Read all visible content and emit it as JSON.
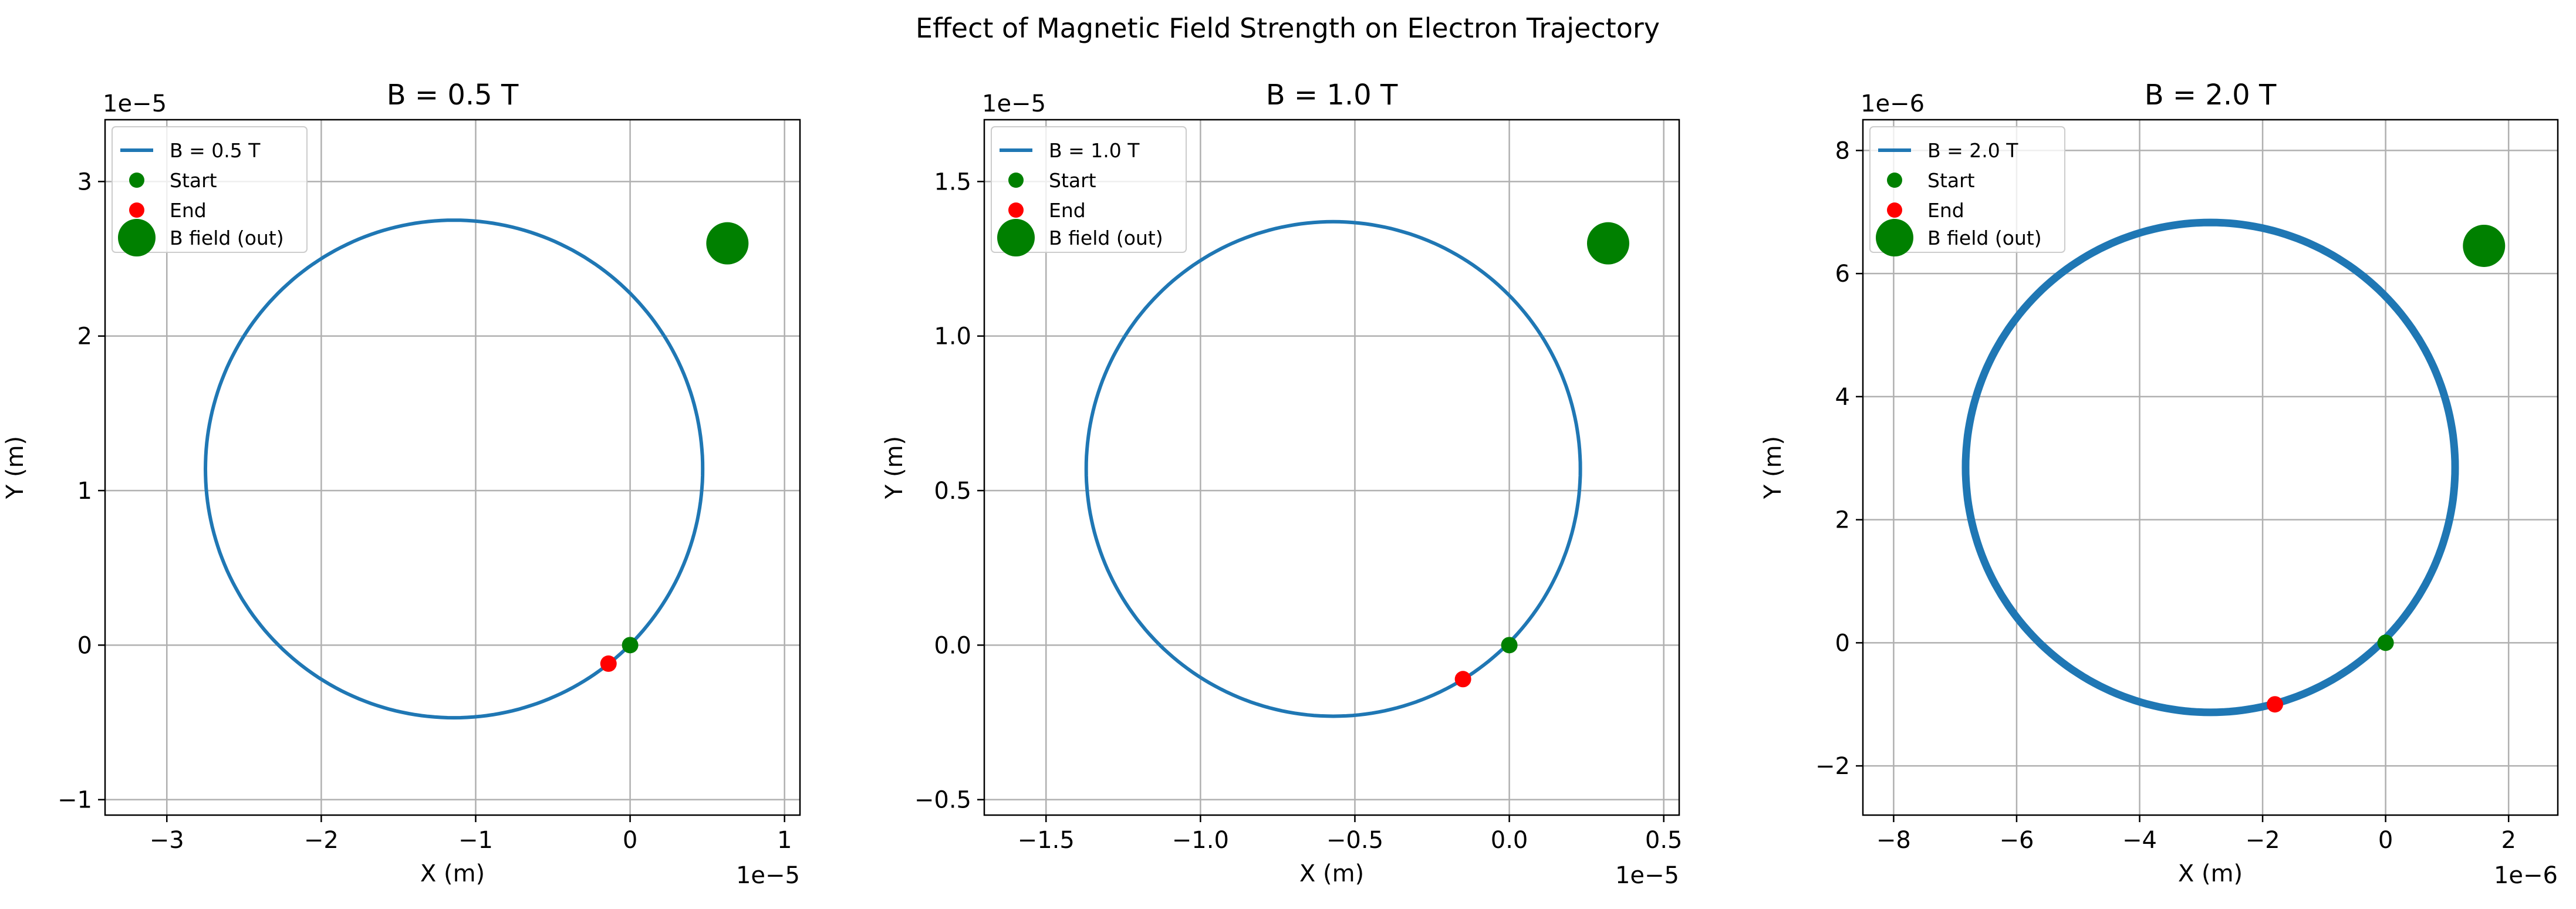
{
  "figure": {
    "suptitle": "Effect of Magnetic Field Strength on Electron Trajectory"
  },
  "colors": {
    "trajectory": "#1f77b4",
    "start_marker": "#008000",
    "end_marker": "#ff0000",
    "b_field_marker": "#008000",
    "grid": "#b0b0b0"
  },
  "chart_data": [
    {
      "type": "line",
      "title": "B = 0.5 T",
      "xlabel": "X (m)",
      "ylabel": "Y (m)",
      "x_offset_label": "1e−5",
      "y_offset_label": "1e−5",
      "xlim": [
        -3.4e-05,
        1.1e-05
      ],
      "ylim": [
        -1.1e-05,
        3.4e-05
      ],
      "xticks": [
        -3e-05,
        -2e-05,
        -1e-05,
        0,
        1e-05
      ],
      "xtick_labels": [
        "−3",
        "−2",
        "−1",
        "0",
        "1"
      ],
      "yticks": [
        -1e-05,
        0,
        1e-05,
        2e-05,
        3e-05
      ],
      "ytick_labels": [
        "−1",
        "0",
        "1",
        "2",
        "3"
      ],
      "grid": true,
      "legend_placement": "upper-left",
      "series": [
        {
          "name": "B = 0.5 T",
          "shape": "circle",
          "center": [
            -1.14e-05,
            1.14e-05
          ],
          "radius": 1.61e-05,
          "start": [
            0,
            0
          ],
          "end": [
            -1.4e-06,
            -1.2e-06
          ]
        }
      ],
      "legend": [
        "B = 0.5 T",
        "Start",
        "End",
        "B field (out)"
      ],
      "b_field_marker": [
        6.3e-06,
        2.6e-05
      ]
    },
    {
      "type": "line",
      "title": "B = 1.0 T",
      "xlabel": "X (m)",
      "ylabel": "Y (m)",
      "x_offset_label": "1e−5",
      "y_offset_label": "1e−5",
      "xlim": [
        -1.7e-05,
        5.5e-06
      ],
      "ylim": [
        -5.5e-06,
        1.7e-05
      ],
      "xticks": [
        -1.5e-05,
        -1e-05,
        -5e-06,
        0,
        5e-06
      ],
      "xtick_labels": [
        "−1.5",
        "−1.0",
        "−0.5",
        "0.0",
        "0.5"
      ],
      "yticks": [
        -5e-06,
        0,
        5e-06,
        1e-05,
        1.5e-05
      ],
      "ytick_labels": [
        "−0.5",
        "0.0",
        "0.5",
        "1.0",
        "1.5"
      ],
      "grid": true,
      "legend_placement": "upper-left",
      "series": [
        {
          "name": "B = 1.0 T",
          "shape": "circle",
          "center": [
            -5.7e-06,
            5.7e-06
          ],
          "radius": 8e-06,
          "start": [
            0,
            0
          ],
          "end": [
            -1.5e-06,
            -1.1e-06
          ]
        }
      ],
      "legend": [
        "B = 1.0 T",
        "Start",
        "End",
        "B field (out)"
      ],
      "b_field_marker": [
        3.2e-06,
        1.3e-05
      ]
    },
    {
      "type": "line",
      "title": "B = 2.0 T",
      "xlabel": "X (m)",
      "ylabel": "Y (m)",
      "x_offset_label": "1e−6",
      "y_offset_label": "1e−6",
      "xlim": [
        -8.5e-06,
        2.8e-06
      ],
      "ylim": [
        -2.8e-06,
        8.5e-06
      ],
      "xticks": [
        -8e-06,
        -6e-06,
        -4e-06,
        -2e-06,
        0,
        2e-06
      ],
      "xtick_labels": [
        "−8",
        "−6",
        "−4",
        "−2",
        "0",
        "2"
      ],
      "yticks": [
        -2e-06,
        0,
        2e-06,
        4e-06,
        6e-06,
        8e-06
      ],
      "ytick_labels": [
        "−2",
        "0",
        "2",
        "4",
        "6",
        "8"
      ],
      "grid": true,
      "legend_placement": "upper-left",
      "series": [
        {
          "name": "B = 2.0 T",
          "shape": "circle",
          "center": [
            -2.85e-06,
            2.85e-06
          ],
          "radius": 3.98e-06,
          "start": [
            0,
            0
          ],
          "end": [
            -1.8e-06,
            -1e-06
          ]
        }
      ],
      "legend": [
        "B = 2.0 T",
        "Start",
        "End",
        "B field (out)"
      ],
      "b_field_marker": [
        1.6e-06,
        6.45e-06
      ]
    }
  ]
}
